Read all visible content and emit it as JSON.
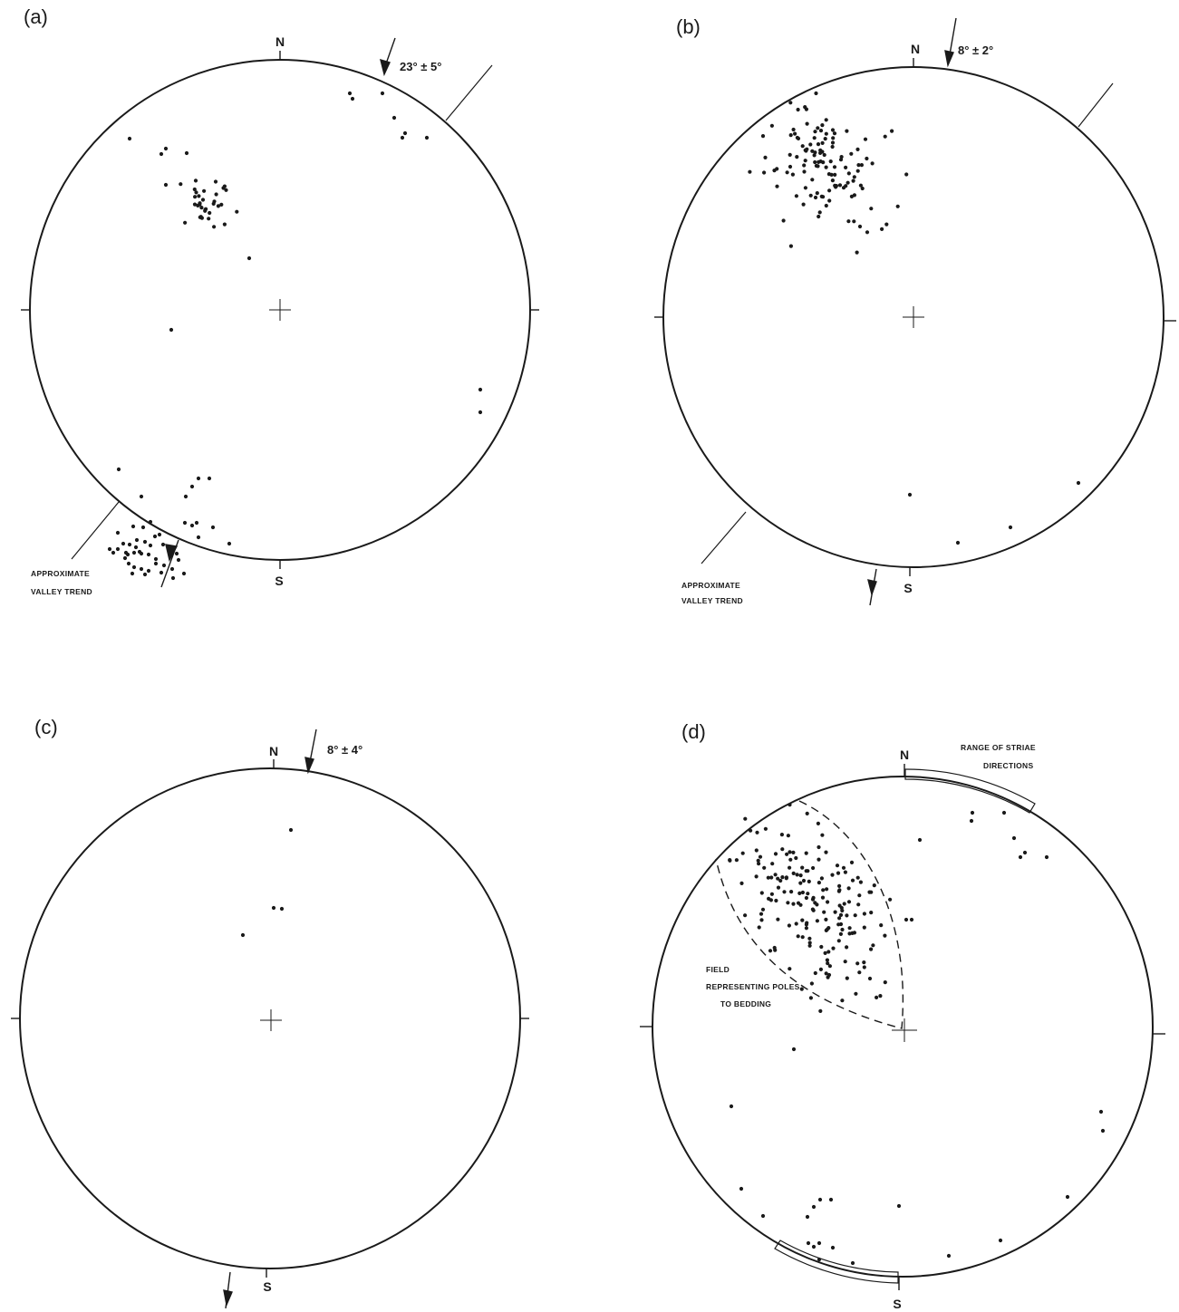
{
  "colors": {
    "ink": "#1a1a1a",
    "paper": "#ffffff"
  },
  "panels": [
    {
      "id": "a",
      "label": "(a)",
      "north": "N",
      "south": "S",
      "angle_label": "23° ± 5°",
      "valley_label": [
        "APPROXIMATE",
        "VALLEY TREND"
      ]
    },
    {
      "id": "b",
      "label": "(b)",
      "north": "N",
      "south": "S",
      "angle_label": "8° ± 2°",
      "valley_label": [
        "APPROXIMATE",
        "VALLEY TREND"
      ]
    },
    {
      "id": "c",
      "label": "(c)",
      "north": "N",
      "south": "S",
      "angle_label": "8° ± 4°"
    },
    {
      "id": "d",
      "label": "(d)",
      "north": "N",
      "south": "S",
      "range_label": [
        "RANGE OF STRIAE",
        "DIRECTIONS"
      ],
      "field_label": [
        "FIELD",
        "REPRESENTING POLES",
        "TO BEDDING"
      ]
    }
  ]
}
